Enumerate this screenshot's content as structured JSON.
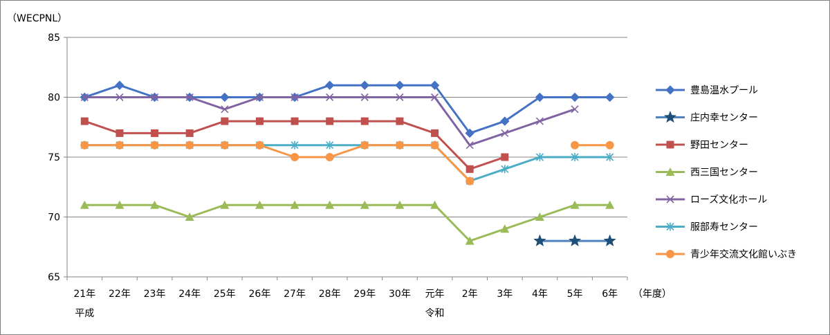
{
  "chart_data": {
    "type": "line",
    "ylabel": "（WECPNL）",
    "xlabel": "（年度）",
    "ylim": [
      65,
      85
    ],
    "yticks": [
      65,
      70,
      75,
      80,
      85
    ],
    "categories": [
      "21年",
      "22年",
      "23年",
      "24年",
      "25年",
      "26年",
      "27年",
      "28年",
      "29年",
      "30年",
      "元年",
      "2年",
      "3年",
      "4年",
      "5年",
      "6年"
    ],
    "era_labels": [
      {
        "label": "平成",
        "category_index": 0
      },
      {
        "label": "令和",
        "category_index": 10
      }
    ],
    "grid": true,
    "legend_position": "right",
    "series": [
      {
        "name": "豊島温水プール",
        "color": "#4472C4",
        "marker": "diamond",
        "values": [
          80,
          81,
          80,
          80,
          80,
          80,
          80,
          81,
          81,
          81,
          81,
          77,
          78,
          80,
          80,
          80
        ]
      },
      {
        "name": "庄内幸センター",
        "color": "#4F81BD",
        "marker": "star",
        "values": [
          null,
          null,
          null,
          null,
          null,
          null,
          null,
          null,
          null,
          null,
          null,
          null,
          null,
          68,
          68,
          68
        ]
      },
      {
        "name": "野田センター",
        "color": "#C0504D",
        "marker": "square",
        "values": [
          78,
          77,
          77,
          77,
          78,
          78,
          78,
          78,
          78,
          78,
          77,
          74,
          75,
          null,
          null,
          null
        ]
      },
      {
        "name": "西三国センター",
        "color": "#9BBB59",
        "marker": "triangle",
        "values": [
          71,
          71,
          71,
          70,
          71,
          71,
          71,
          71,
          71,
          71,
          71,
          68,
          69,
          70,
          71,
          71
        ]
      },
      {
        "name": "ローズ文化ホール",
        "color": "#8064A2",
        "marker": "x",
        "values": [
          80,
          80,
          80,
          80,
          79,
          80,
          80,
          80,
          80,
          80,
          80,
          76,
          77,
          78,
          79,
          null
        ]
      },
      {
        "name": "服部寿センター",
        "color": "#4BACC6",
        "marker": "asterisk",
        "values": [
          76,
          76,
          76,
          76,
          76,
          76,
          76,
          76,
          76,
          76,
          76,
          73,
          74,
          75,
          75,
          75
        ]
      },
      {
        "name": "青少年交流文化館いぶき",
        "color": "#F79646",
        "marker": "circle",
        "values": [
          76,
          76,
          76,
          76,
          76,
          76,
          75,
          75,
          76,
          76,
          76,
          73,
          null,
          null,
          76,
          76
        ]
      }
    ]
  }
}
